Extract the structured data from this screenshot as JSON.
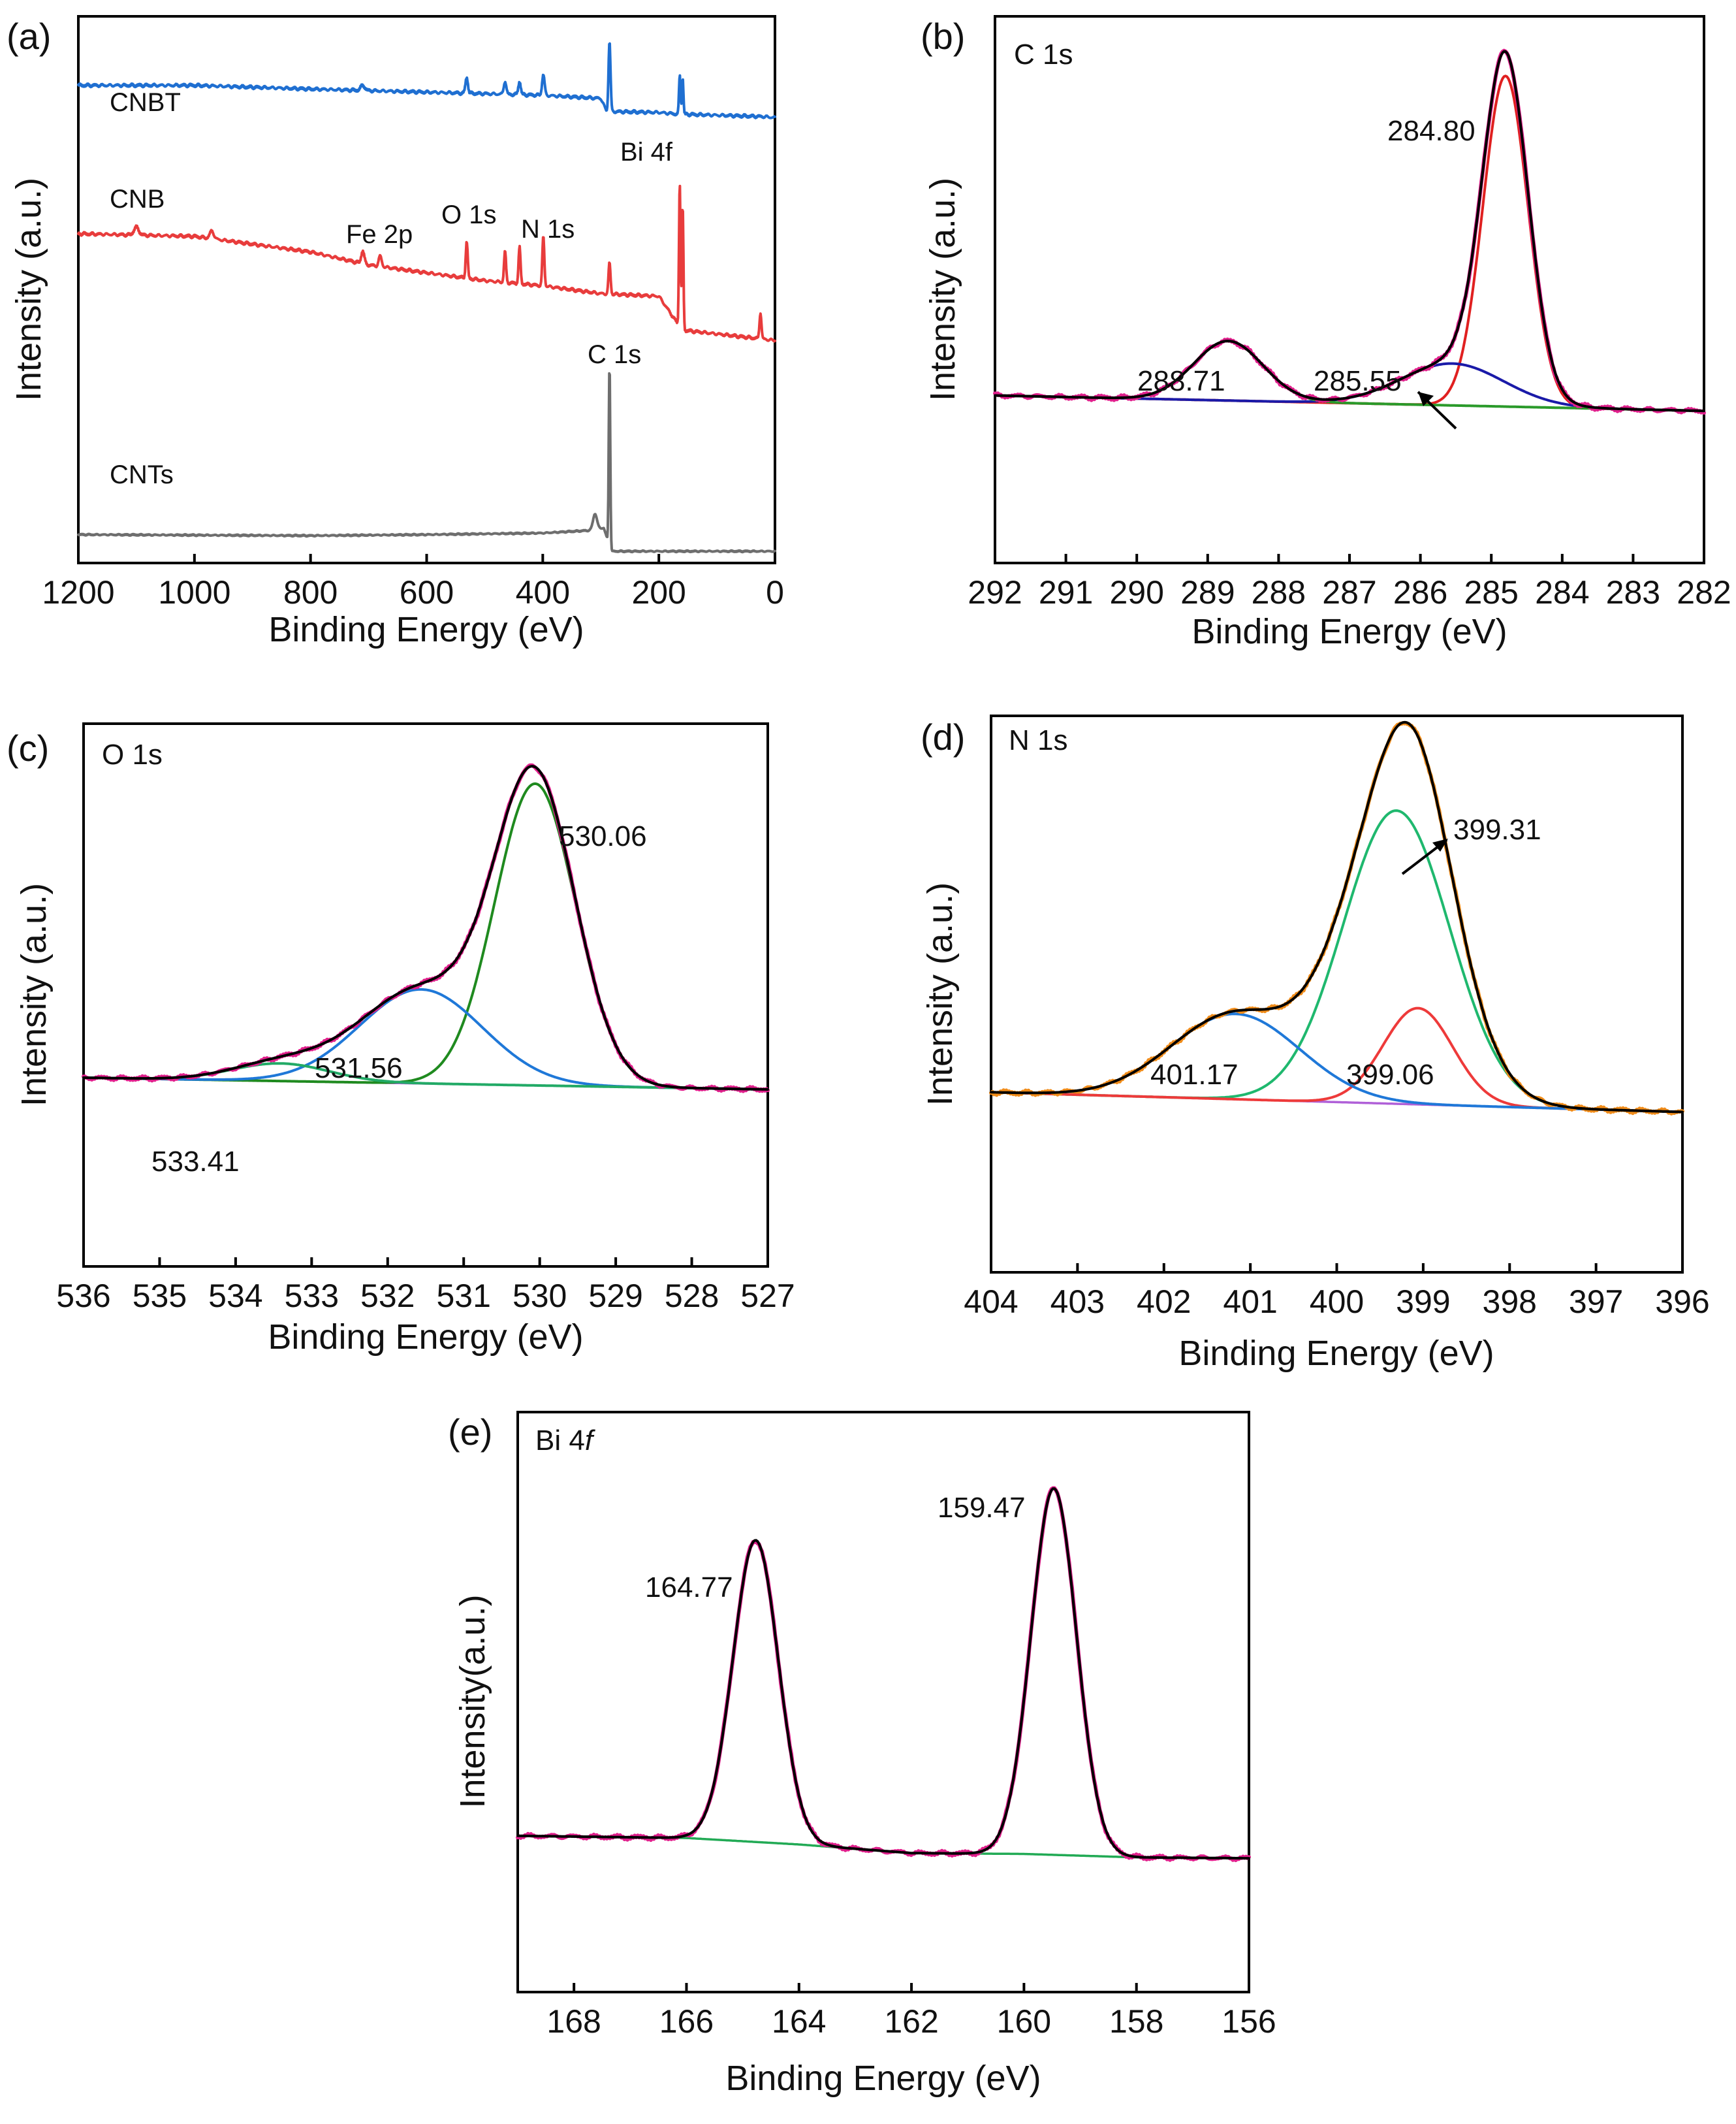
{
  "chart_data": [
    {
      "panel": "(a)",
      "type": "line",
      "title": "",
      "xlabel": "Binding Energy (eV)",
      "ylabel": "Intensity (a.u.)",
      "xlim": [
        1200,
        0
      ],
      "ylim": [
        0,
        100
      ],
      "xticks": [
        "1200",
        "1000",
        "800",
        "600",
        "400",
        "200",
        "0"
      ],
      "x_tick_values": [
        1200,
        1000,
        800,
        600,
        400,
        200,
        0
      ],
      "series": [
        {
          "name": "CNBT",
          "color": "#1f6fd1",
          "baseline": [
            [
              1200,
              90.5
            ],
            [
              1000,
              90.5
            ],
            [
              800,
              89.8
            ],
            [
              600,
              89.2
            ],
            [
              400,
              88.6
            ],
            [
              300,
              88.0
            ],
            [
              290,
              85.5
            ],
            [
              200,
              85.3
            ],
            [
              170,
              85.0
            ],
            [
              20,
              84.5
            ],
            [
              0,
              84.3
            ]
          ],
          "peaks": [
            [
              710,
              1.0,
              8
            ],
            [
              531,
              3.0,
              5
            ],
            [
              465,
              2.5,
              5
            ],
            [
              440,
              2.5,
              5
            ],
            [
              399,
              4.0,
              5
            ],
            [
              285,
              13.5,
              4
            ],
            [
              164,
              7.5,
              3
            ],
            [
              159,
              7.0,
              3
            ]
          ]
        },
        {
          "name": "CNB",
          "color": "#e83c3c",
          "baseline": [
            [
              1200,
              62.0
            ],
            [
              1000,
              61.5
            ],
            [
              800,
              58.5
            ],
            [
              700,
              56.0
            ],
            [
              600,
              54.5
            ],
            [
              500,
              53.0
            ],
            [
              400,
              52.0
            ],
            [
              300,
              50.5
            ],
            [
              200,
              50.0
            ],
            [
              160,
              43.5
            ],
            [
              0,
              41.5
            ]
          ],
          "peaks": [
            [
              1100,
              1.5,
              10
            ],
            [
              970,
              1.5,
              8
            ],
            [
              710,
              2.5,
              6
            ],
            [
              680,
              2.0,
              6
            ],
            [
              531,
              7.0,
              4
            ],
            [
              465,
              6.0,
              4
            ],
            [
              440,
              7.0,
              4
            ],
            [
              399,
              9.5,
              4
            ],
            [
              285,
              6.0,
              4
            ],
            [
              164,
              28.0,
              3
            ],
            [
              159,
              24.0,
              3
            ],
            [
              25,
              5.0,
              4
            ]
          ]
        },
        {
          "name": "CNTs",
          "color": "#6e6e6e",
          "baseline": [
            [
              1200,
              4.2
            ],
            [
              800,
              4.0
            ],
            [
              600,
              4.2
            ],
            [
              400,
              4.5
            ],
            [
              320,
              5.0
            ],
            [
              295,
              5.5
            ],
            [
              282,
              1.0
            ],
            [
              0,
              1.0
            ]
          ],
          "peaks": [
            [
              310,
              3.0,
              8
            ],
            [
              285,
              35.0,
              3
            ]
          ]
        }
      ],
      "series_labels": [
        "CNBT",
        "CNB",
        "CNTs"
      ],
      "peak_labels": [
        "Fe 2p",
        "O 1s",
        "N 1s",
        "Bi 4f",
        "C 1s"
      ]
    },
    {
      "panel": "(b)",
      "type": "line",
      "title": "C 1s",
      "xlabel": "Binding Energy (eV)",
      "ylabel": "Intensity (a.u.)",
      "xlim": [
        292,
        282
      ],
      "ylim": [
        0,
        100
      ],
      "xticks": [
        "292",
        "291",
        "290",
        "289",
        "288",
        "287",
        "286",
        "285",
        "284",
        "283",
        "282"
      ],
      "x_tick_values": [
        292,
        291,
        290,
        289,
        288,
        287,
        286,
        285,
        284,
        283,
        282
      ],
      "baseline": {
        "start": [
          292,
          18.0
        ],
        "end": [
          282,
          14.5
        ]
      },
      "components": [
        {
          "name": "284.80",
          "center": 284.8,
          "height": 75.0,
          "fwhm": 0.75,
          "color": "#e02020"
        },
        {
          "name": "285.55",
          "center": 285.55,
          "height": 9.5,
          "fwhm": 1.7,
          "color": "#1a1aa8"
        },
        {
          "name": "288.71",
          "center": 288.71,
          "height": 13.5,
          "fwhm": 1.15,
          "color": "#2a9a2a"
        }
      ],
      "envelope_color": "#000000",
      "raw_color": "#e0208c",
      "peak_labels": [
        "284.80",
        "285.55",
        "288.71"
      ]
    },
    {
      "panel": "(c)",
      "type": "line",
      "title": "O 1s",
      "xlabel": "Binding Energy (eV)",
      "ylabel": "Intensity (a.u.)",
      "xlim": [
        536,
        527
      ],
      "ylim": [
        0,
        100
      ],
      "xticks": [
        "536",
        "535",
        "534",
        "533",
        "532",
        "531",
        "530",
        "529",
        "528",
        "527"
      ],
      "x_tick_values": [
        536,
        535,
        534,
        533,
        532,
        531,
        530,
        529,
        528,
        527
      ],
      "baseline": {
        "start": [
          536,
          14.0
        ],
        "end": [
          527,
          11.0
        ]
      },
      "components": [
        {
          "name": "530.06",
          "center": 530.06,
          "height": 77.0,
          "fwhm": 1.25,
          "color": "#1f8a1f"
        },
        {
          "name": "531.56",
          "center": 531.56,
          "height": 24.0,
          "fwhm": 1.9,
          "color": "#1f78d8"
        },
        {
          "name": "533.41",
          "center": 533.41,
          "height": 4.5,
          "fwhm": 1.5,
          "color": "#22aa66"
        }
      ],
      "envelope_color": "#000000",
      "raw_color": "#e0208c",
      "peak_labels": [
        "530.06",
        "531.56",
        "533.41"
      ]
    },
    {
      "panel": "(d)",
      "type": "line",
      "title": "N 1s",
      "xlabel": "Binding Energy (eV)",
      "ylabel": "Intensity (a.u.)",
      "xlim": [
        404,
        396
      ],
      "ylim": [
        0,
        100
      ],
      "xticks": [
        "404",
        "403",
        "402",
        "401",
        "400",
        "399",
        "398",
        "397",
        "396"
      ],
      "x_tick_values": [
        404,
        403,
        402,
        401,
        400,
        399,
        398,
        397,
        396
      ],
      "baseline": {
        "start": [
          404,
          19.5
        ],
        "end": [
          396,
          15.0
        ]
      },
      "components": [
        {
          "name": "399.31",
          "center": 399.31,
          "height": 67.0,
          "fwhm": 1.45,
          "color": "#1fb86e"
        },
        {
          "name": "399.06",
          "center": 399.06,
          "height": 22.0,
          "fwhm": 0.95,
          "color": "#ee3a3a"
        },
        {
          "name": "401.17",
          "center": 401.17,
          "height": 19.5,
          "fwhm": 1.75,
          "color": "#1f78d8"
        }
      ],
      "envelope_color": "#000000",
      "raw_color": "#f08c1a",
      "peak_labels": [
        "399.31",
        "399.06",
        "401.17"
      ]
    },
    {
      "panel": "(e)",
      "type": "line",
      "title": "Bi 4f",
      "title_main": "Bi 4",
      "title_italic": "f",
      "xlabel": "Binding Energy (eV)",
      "ylabel": "Intensity(a.u.)",
      "xlim": [
        169,
        156
      ],
      "ylim": [
        0,
        100
      ],
      "xticks": [
        "168",
        "166",
        "164",
        "162",
        "160",
        "158",
        "156"
      ],
      "x_tick_values": [
        168,
        166,
        164,
        162,
        160,
        158,
        156
      ],
      "baseline": {
        "points": [
          [
            169,
            12.0
          ],
          [
            166,
            11.5
          ],
          [
            164,
            10.0
          ],
          [
            162,
            8.0
          ],
          [
            160,
            7.8
          ],
          [
            158,
            7.0
          ],
          [
            156,
            6.8
          ]
        ]
      },
      "components": [
        {
          "name": "164.77",
          "center": 164.77,
          "height": 70.0,
          "fwhm": 0.95,
          "color": "#000000"
        },
        {
          "name": "159.47",
          "center": 159.47,
          "height": 85.0,
          "fwhm": 0.95,
          "color": "#000000"
        }
      ],
      "envelope_color": "#000000",
      "raw_color": "#e0208c",
      "baseline_color": "#22aa55",
      "peak_labels": [
        "164.77",
        "159.47"
      ]
    }
  ]
}
